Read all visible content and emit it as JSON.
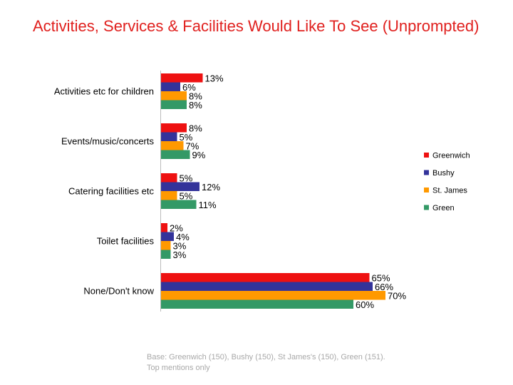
{
  "title": "Activities, Services & Facilities Would Like To See (Unprompted)",
  "footnote": {
    "line1": "Base: Greenwich (150), Bushy (150), St James's (150), Green (151).",
    "line2": "Top mentions only"
  },
  "chart_data": {
    "type": "bar",
    "orientation": "horizontal",
    "title": "Activities, Services & Facilities Would Like To See (Unprompted)",
    "xlabel": "",
    "ylabel": "",
    "xlim": [
      0,
      100
    ],
    "grid": false,
    "legend_position": "right",
    "value_suffix": "%",
    "categories": [
      "Activities etc for children",
      "Events/music/concerts",
      "Catering facilities etc",
      "Toilet facilities",
      "None/Don't know"
    ],
    "series": [
      {
        "name": "Greenwich",
        "color": "#ee1111",
        "values": [
          13,
          8,
          5,
          2,
          65
        ]
      },
      {
        "name": "Bushy",
        "color": "#33339a",
        "values": [
          6,
          5,
          12,
          4,
          66
        ]
      },
      {
        "name": "St. James",
        "color": "#ff9900",
        "values": [
          8,
          7,
          5,
          3,
          70
        ]
      },
      {
        "name": "Green",
        "color": "#339966",
        "values": [
          8,
          9,
          11,
          3,
          60
        ]
      }
    ]
  }
}
